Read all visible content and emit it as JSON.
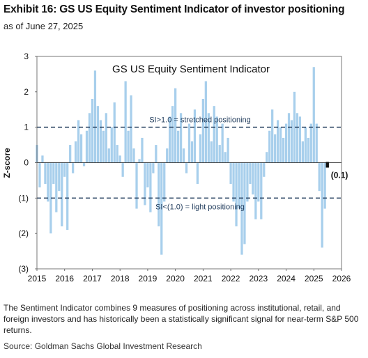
{
  "exhibit": {
    "title": "Exhibit 16: GS US Equity Sentiment Indicator of investor positioning",
    "subtitle": "as of June 27, 2025"
  },
  "chart_data": {
    "type": "bar",
    "title": "GS US Equity  Sentiment Indicator",
    "ylabel": "Z-score",
    "xlabel": "",
    "xlim": [
      2015,
      2026
    ],
    "ylim": [
      -3,
      3
    ],
    "y_ticks": [
      3,
      2,
      1,
      0,
      -1,
      -2,
      -3
    ],
    "y_tick_labels": [
      "3",
      "2",
      "1",
      "0",
      "(1)",
      "(2)",
      "(3)"
    ],
    "x_ticks": [
      2015,
      2016,
      2017,
      2018,
      2019,
      2020,
      2021,
      2022,
      2023,
      2024,
      2025,
      2026
    ],
    "x_tick_labels": [
      "2015",
      "2016",
      "2017",
      "2018",
      "2019",
      "2020",
      "2021",
      "2022",
      "2023",
      "2024",
      "2025",
      "2026"
    ],
    "grid": false,
    "series_color": "#a8cfec",
    "reference_lines": [
      {
        "y": 1.0,
        "label": "SI>1.0 = stretched positioning",
        "style": "dashed",
        "color": "#1f3a5a"
      },
      {
        "y": -1.0,
        "label": "SI<(1.0) = light positioning",
        "style": "dashed",
        "color": "#1f3a5a"
      }
    ],
    "last_value": {
      "x": 2025.49,
      "y": -0.1,
      "label": "(0.1)"
    },
    "series": [
      {
        "x": [
          2015.0,
          2015.1,
          2015.2,
          2015.3,
          2015.4,
          2015.5,
          2015.6,
          2015.7,
          2015.8,
          2015.9,
          2016.0,
          2016.1,
          2016.2,
          2016.3,
          2016.4,
          2016.5,
          2016.6,
          2016.7,
          2016.8,
          2016.9,
          2017.0,
          2017.1,
          2017.2,
          2017.3,
          2017.4,
          2017.5,
          2017.6,
          2017.7,
          2017.8,
          2017.9,
          2018.0,
          2018.1,
          2018.2,
          2018.3,
          2018.4,
          2018.5,
          2018.6,
          2018.7,
          2018.8,
          2018.9,
          2019.0,
          2019.1,
          2019.2,
          2019.3,
          2019.4,
          2019.5,
          2019.6,
          2019.7,
          2019.8,
          2019.9,
          2020.0,
          2020.1,
          2020.2,
          2020.3,
          2020.4,
          2020.5,
          2020.6,
          2020.7,
          2020.8,
          2020.9,
          2021.0,
          2021.1,
          2021.2,
          2021.3,
          2021.4,
          2021.5,
          2021.6,
          2021.7,
          2021.8,
          2021.9,
          2022.0,
          2022.1,
          2022.2,
          2022.3,
          2022.4,
          2022.5,
          2022.6,
          2022.7,
          2022.8,
          2022.9,
          2023.0,
          2023.1,
          2023.2,
          2023.3,
          2023.4,
          2023.5,
          2023.6,
          2023.7,
          2023.8,
          2023.9,
          2024.0,
          2024.1,
          2024.2,
          2024.3,
          2024.4,
          2024.5,
          2024.6,
          2024.7,
          2024.8,
          2024.9,
          2025.0,
          2025.1,
          2025.2,
          2025.3,
          2025.4,
          2025.49
        ],
        "values": [
          0.5,
          -0.7,
          0.2,
          -0.6,
          -1.1,
          -2.0,
          -0.6,
          -1.4,
          -0.8,
          -1.8,
          -0.4,
          -1.9,
          0.5,
          -0.3,
          0.6,
          1.2,
          0.8,
          -0.1,
          0.9,
          1.4,
          1.8,
          2.6,
          1.6,
          1.2,
          0.9,
          1.4,
          0.4,
          1.0,
          1.7,
          0.5,
          0.2,
          -0.4,
          2.3,
          0.9,
          1.9,
          0.4,
          -1.3,
          0.1,
          0.7,
          -1.2,
          -0.7,
          -1.4,
          -0.3,
          0.5,
          -1.8,
          -2.6,
          -1.1,
          0.4,
          1.3,
          1.6,
          2.1,
          0.9,
          1.4,
          0.4,
          -0.3,
          1.1,
          0.6,
          1.5,
          -0.6,
          0.8,
          1.8,
          2.3,
          1.4,
          0.6,
          1.6,
          1.3,
          0.5,
          1.1,
          0.3,
          0.7,
          -0.6,
          -1.1,
          -1.8,
          -1.3,
          -2.6,
          -2.3,
          -1.1,
          -0.6,
          -0.9,
          -1.6,
          -1.1,
          -1.6,
          -0.4,
          0.3,
          0.9,
          1.5,
          0.8,
          1.2,
          1.0,
          0.7,
          1.1,
          1.4,
          1.2,
          2.0,
          1.4,
          1.3,
          0.6,
          1.0,
          0.7,
          1.1,
          2.7,
          1.1,
          -0.8,
          -2.4,
          -1.3,
          -0.1
        ]
      }
    ]
  },
  "footnote": "The Sentiment Indicator combines 9 measures of positioning across institutional, retail, and foreign investors and has historically been a statistically significant signal for near-term S&P 500 returns.",
  "source": "Source: Goldman Sachs Global Investment Research"
}
